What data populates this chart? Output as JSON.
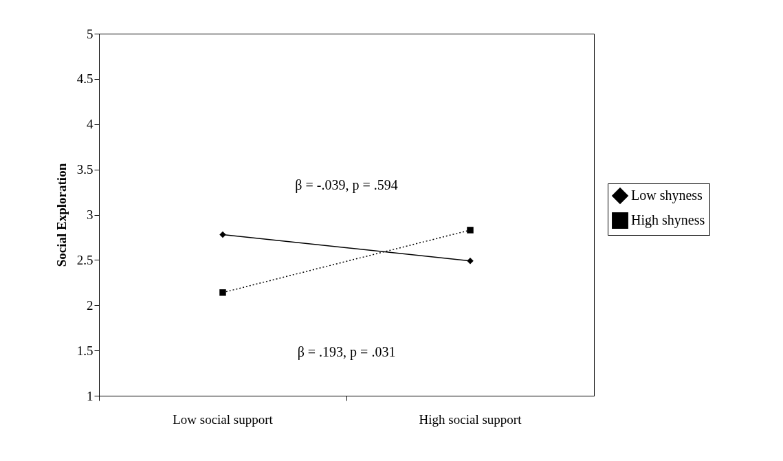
{
  "chart_data": {
    "type": "line",
    "ylabel": "Social Exploration",
    "categories": [
      "Low social support",
      "High social support"
    ],
    "series": [
      {
        "name": "Low shyness",
        "color": "#000000",
        "values": [
          2.78,
          2.49
        ],
        "marker": "diamond",
        "line_style": "solid"
      },
      {
        "name": "High shyness",
        "color": "#000000",
        "values": [
          2.14,
          2.83
        ],
        "marker": "square",
        "line_style": "dotted"
      }
    ],
    "ylim": [
      1,
      5
    ],
    "yticks": [
      1,
      1.5,
      2,
      2.5,
      3,
      3.5,
      4,
      4.5,
      5
    ],
    "grid": false,
    "legend": "right",
    "annotations": [
      "β = -.039, p = .594",
      "β = .193, p = .031"
    ]
  }
}
